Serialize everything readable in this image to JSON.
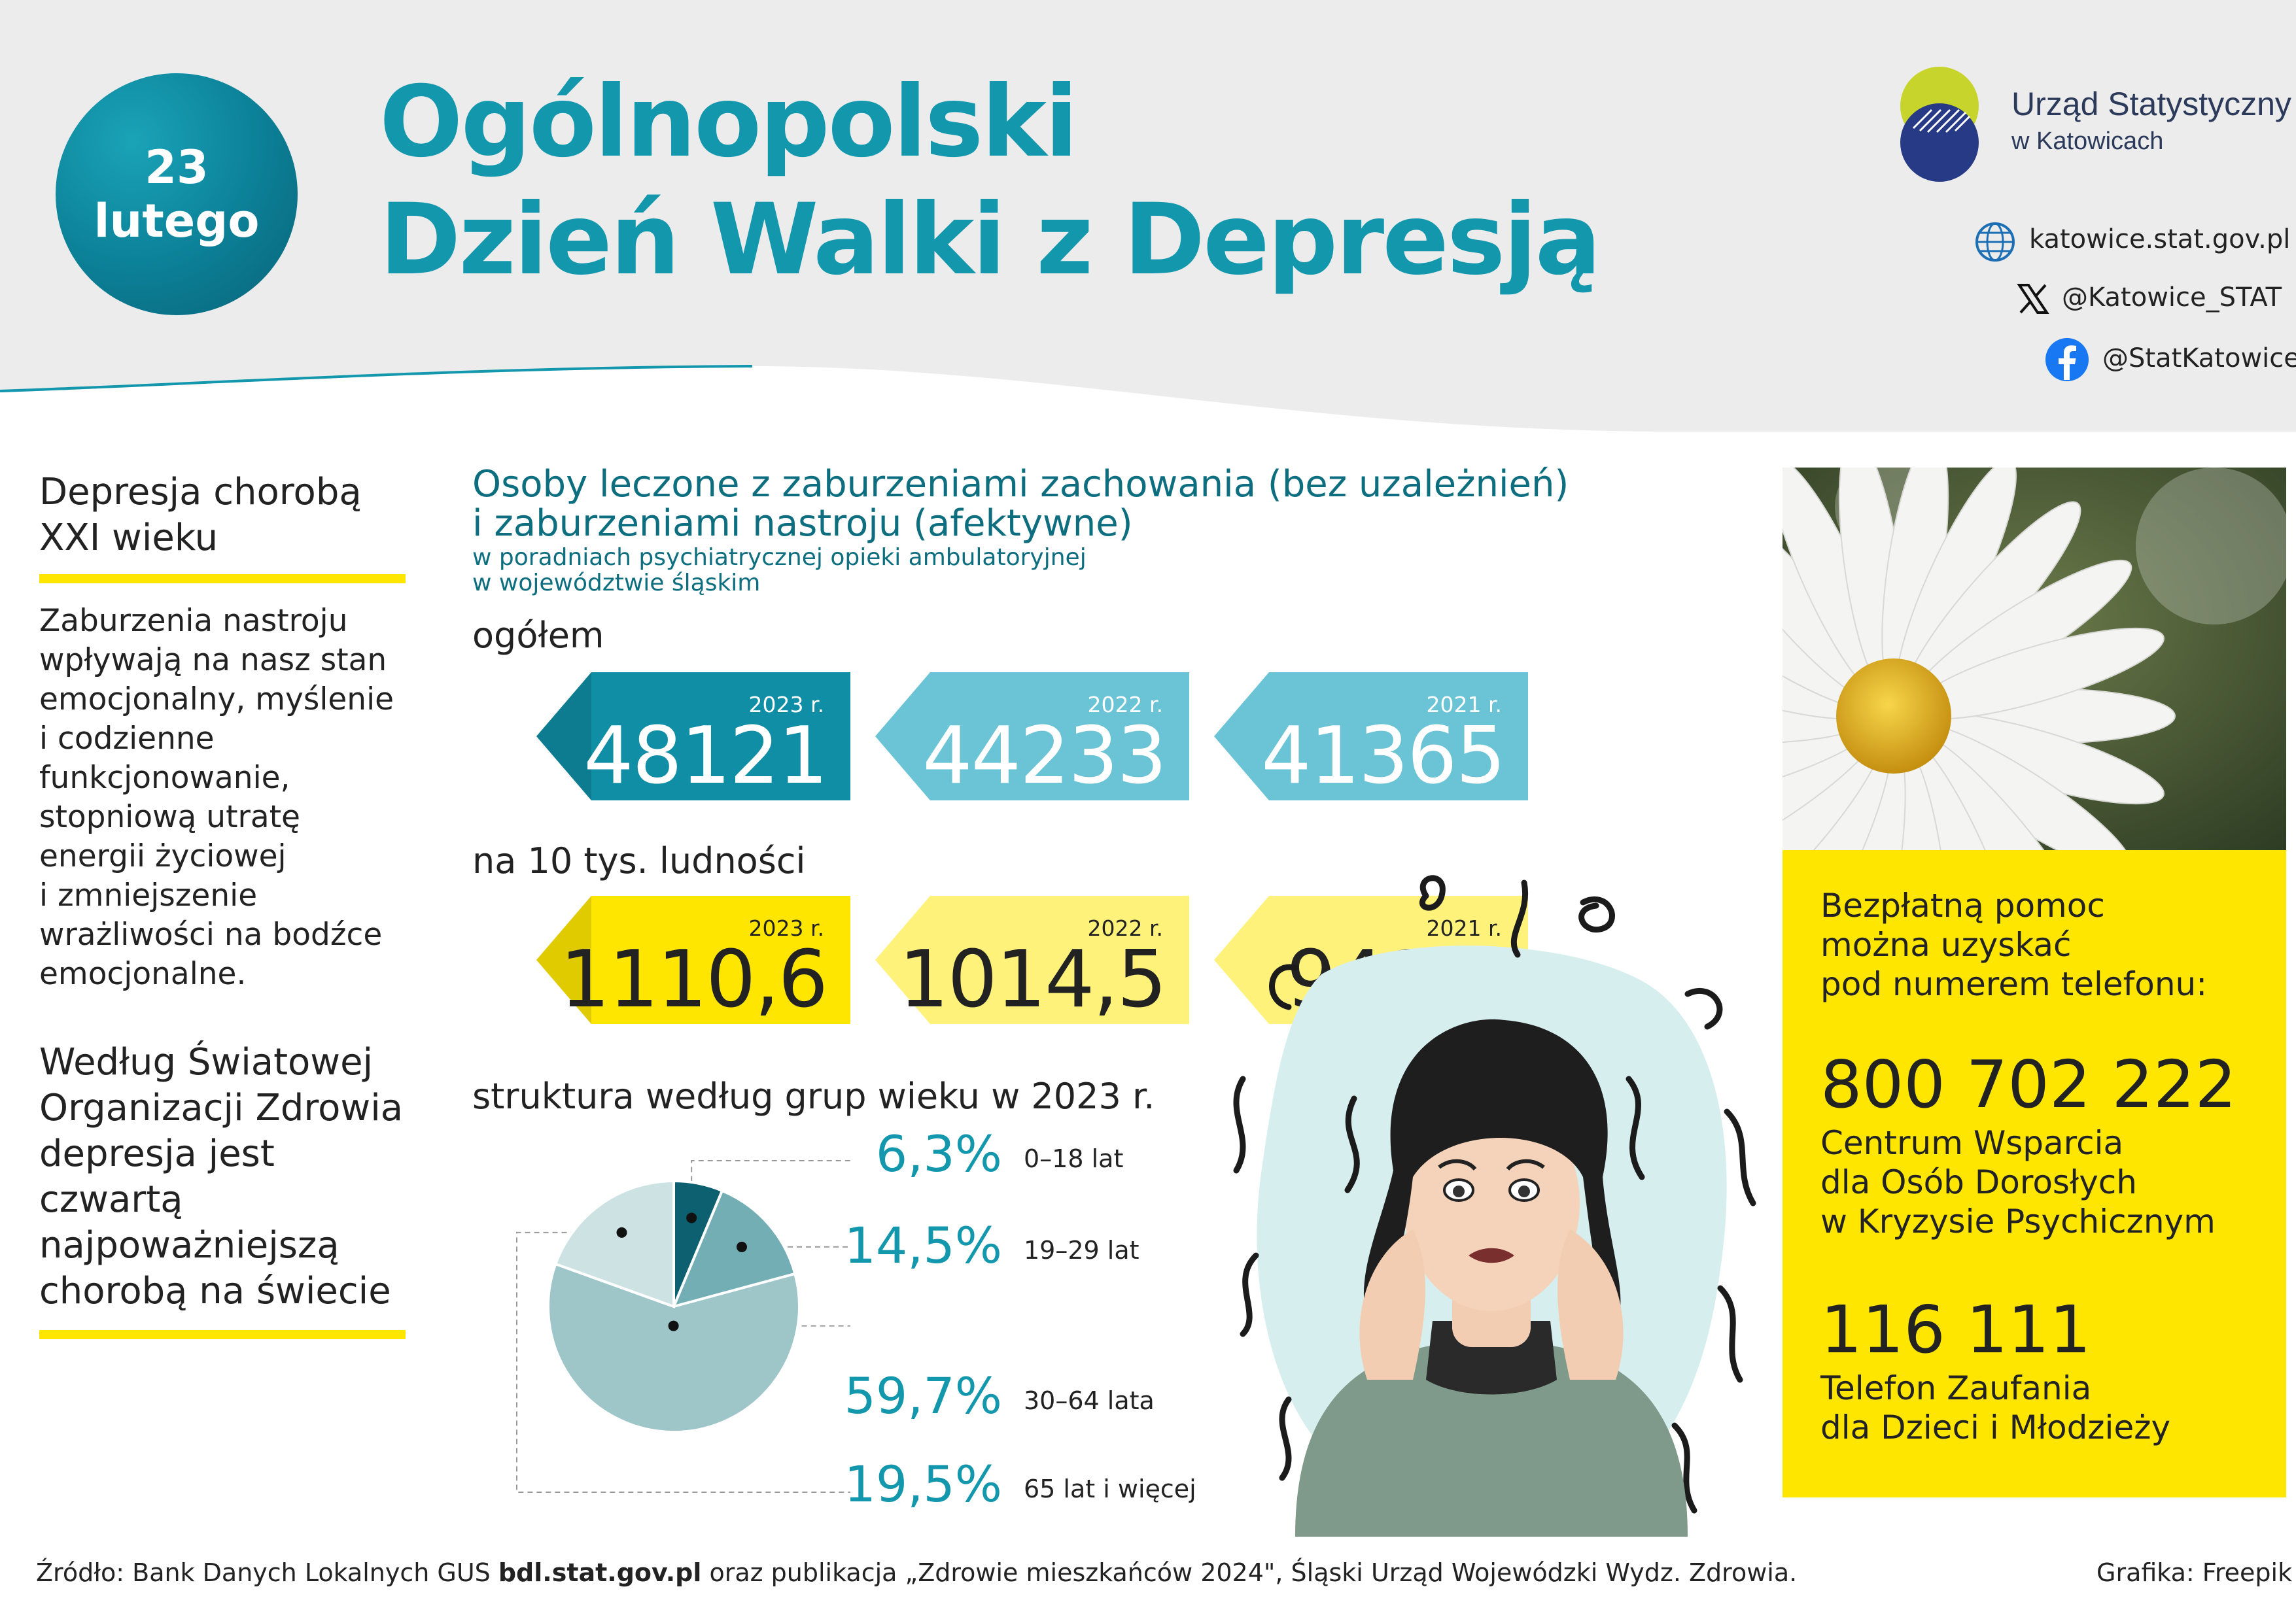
{
  "header": {
    "date_line1": "23",
    "date_line2": "lutego",
    "title_line1": "Ogólnopolski",
    "title_line2": "Dzień Walki z Depresją"
  },
  "logo": {
    "line1": "Urząd Statystyczny",
    "line2": "w Katowicach"
  },
  "contacts": [
    {
      "icon": "globe-icon",
      "text": "katowice.stat.gov.pl"
    },
    {
      "icon": "x-icon",
      "text": "@Katowice_STAT"
    },
    {
      "icon": "facebook-icon",
      "text": "@StatKatowice"
    }
  ],
  "left": {
    "heading_line1": "Depresja chorobą",
    "heading_line2": "XXI wieku",
    "para_lines": [
      "Zaburzenia nastroju",
      "wpływają na nasz stan",
      "emocjonalny, myślenie",
      "i codzienne",
      "funkcjonowanie,",
      "stopniową utratę",
      "energii życiowej",
      "i zmniejszenie",
      "wrażliwości na bodźce",
      "emocjonalne."
    ],
    "who_lines": [
      "Według Światowej",
      "Organizacji Zdrowia",
      "depresja jest",
      "czwartą",
      "najpoważniejszą",
      "chorobą na świecie"
    ]
  },
  "section": {
    "title_line1": "Osoby leczone z zaburzeniami zachowania (bez uzależnień)",
    "title_line2": "i zaburzeniami nastroju (afektywne)",
    "sub_line1": "w poradniach psychiatrycznej opieki ambulatoryjnej",
    "sub_line2": "w województwie śląskim",
    "total_label": "ogółem",
    "per_label": "na 10 tys. ludności",
    "structure_label": "struktura według grup wieku w 2023 r."
  },
  "totals": [
    {
      "year": "2023 r.",
      "value": "48121",
      "color": "#0f8ea5",
      "text_color": "#ffffff"
    },
    {
      "year": "2022 r.",
      "value": "44233",
      "color": "#6ac4d6",
      "text_color": "#ffffff"
    },
    {
      "year": "2021 r.",
      "value": "41365",
      "color": "#6ac4d6",
      "text_color": "#ffffff"
    }
  ],
  "per10k": [
    {
      "year": "2023 r.",
      "value": "1110,6",
      "color": "#ffe600",
      "text_color": "#222222"
    },
    {
      "year": "2022 r.",
      "value": "1014,5",
      "color": "#fff27a",
      "text_color": "#222222"
    },
    {
      "year": "2021 r.",
      "value": "941,7",
      "color": "#fff27a",
      "text_color": "#222222"
    }
  ],
  "chart_data": {
    "type": "pie",
    "title": "struktura według grup wieku w 2023 r.",
    "categories": [
      "0–18 lat",
      "19–29 lat",
      "30–64 lata",
      "65 lat i więcej"
    ],
    "values": [
      6.3,
      14.5,
      59.7,
      19.5
    ],
    "value_labels": [
      "6,3%",
      "14,5%",
      "59,7%",
      "19,5%"
    ],
    "colors": [
      "#0d6070",
      "#72aeb4",
      "#9ec6c9",
      "#cde2e3"
    ]
  },
  "help": {
    "intro_lines": [
      "Bezpłatną pomoc",
      "można uzyskać",
      "pod numerem telefonu:"
    ],
    "phone1": "800 702 222",
    "phone1_desc": [
      "Centrum Wsparcia",
      "dla Osób Dorosłych",
      "w Kryzysie Psychicznym"
    ],
    "phone2": "116 111",
    "phone2_desc": [
      "Telefon Zaufania",
      "dla Dzieci i Młodzieży"
    ]
  },
  "footer": {
    "source_prefix": "Źródło: Bank Danych Lokalnych GUS ",
    "source_bold": "bdl.stat.gov.pl",
    "source_suffix": " oraz publikacja „Zdrowie mieszkańców 2024\", Śląski Urząd Wojewódzki Wydz. Zdrowia.",
    "graphics": "Grafika: Freepik"
  }
}
